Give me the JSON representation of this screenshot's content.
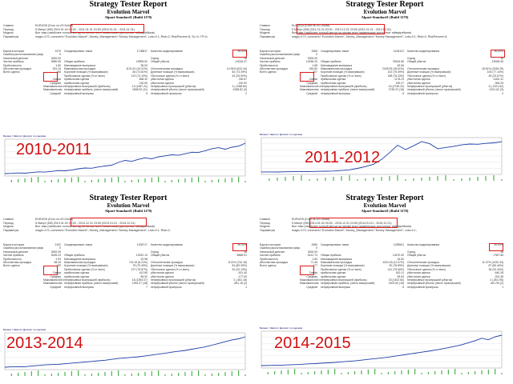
{
  "colors": {
    "accent_red": "#e01b1b",
    "balance_line": "#1f3fa8",
    "volume": "#2ca02c",
    "year_label": "#d11111"
  },
  "reports": [
    {
      "title": "Strategy Tester Report",
      "expert": "Evolution Marvel",
      "server": "Alpari-Standard1 (Build 1170)",
      "year_label": "2010-2011",
      "header": [
        {
          "k": "Символ",
          "v": "EURUSD (Euro vs US Dollar)"
        },
        {
          "k": "Период",
          "v": "5 Минут (M5) 2010.01.04 00:00 - 2011.01.31 23:59 (2010.01.01 - 2011.01.31)"
        },
        {
          "k": "Модель",
          "v": "Все тики (наиболее точный метод на основе всех наименьших доступных таймфреймов)"
        },
        {
          "k": "Параметры",
          "v": "magic=170; comment=\"Evolution Marvel\"; Money_Management=\"Money Management\"; Lots=0.1; Risk=2; RiskPercent=5; SL=0; TP=0;"
        }
      ],
      "quality": "90.00%",
      "stats": [
        [
          "Баров в истории",
          "2470",
          "Смоделировано тиков",
          "1736817",
          "Качество моделирования",
          "90.00%"
        ],
        [
          "Ошибки рассогласования графиков",
          "0",
          "",
          "",
          "",
          ""
        ],
        [
          "Начальный депозит",
          "3000.00",
          "",
          "",
          "Спред",
          "16"
        ],
        [
          "Чистая прибыль",
          "5980.05",
          "Общая прибыль",
          "15995.52",
          "Общий убыток",
          "-10015.47"
        ],
        [
          "Прибыльность",
          "1.60",
          "Матожидание выигрыша",
          "36.00",
          "",
          ""
        ],
        [
          "Абсолютная просадка",
          "261.24",
          "Максимальная просадка",
          "1131.61 (10.01%)",
          "Относительная просадка",
          "14.94% (812.44)"
        ],
        [
          "Всего сделок",
          "166",
          "Короткие позиции (% выигравших)",
          "84 (73.81%)",
          "Длинные позиции (% выигравших)",
          "82 (74.39%)"
        ],
        [
          "",
          "",
          "Прибыльные сделки (% от всех)",
          "123 (74.10%)",
          "Убыточные сделки (% от всех)",
          "43 (25.90%)"
        ],
        [
          "",
          "Самая",
          "прибыльная сделка",
          "668.32",
          "убыточная сделка",
          "-765.67"
        ],
        [
          "",
          "Средняя",
          "прибыльная сделка",
          "130.05",
          "убыточная сделка",
          "-232.92"
        ],
        [
          "",
          "Максимальное количество",
          "непрерывных выигрышей (прибыль)",
          "13 (1487.21)",
          "непрерывных проигрышей (убыток)",
          "3 (-1058.82)"
        ],
        [
          "",
          "Максимальная",
          "непрерывная прибыль (число выигрышей)",
          "1808.92 (11)",
          "непрерывный убыток (число проигрышей)",
          "-1058.82 (3)"
        ],
        [
          "",
          "Средний",
          "непрерывный выигрыш",
          "5",
          "непрерывный проигрыш",
          "2"
        ]
      ],
      "chart_legend": "Баланс / Эквити / Депозит по сделкам"
    },
    {
      "title": "Strategy Tester Report",
      "expert": "Evolution Marvel",
      "server": "Alpari-Standard1 (Build 1170)",
      "year_label": "2011-2012",
      "header": [
        {
          "k": "Символ",
          "v": "EURUSD (Euro vs US Dollar)"
        },
        {
          "k": "Период",
          "v": "5 Минут (M5) 2011.01.01 00:00 - 2012.12.31 23:59 (2011.01.01 - 2012.12.31)"
        },
        {
          "k": "Модель",
          "v": "Все тики (наиболее точный метод на основе всех наименьших доступных таймфреймов)"
        },
        {
          "k": "Параметры",
          "v": "magic=170; comment=\"Evolution Marvel\"; Money_Management=\"Money Management\"; Lots=0.1; Risk=2; RiskPercent=5;"
        }
      ],
      "quality": "90.00%",
      "stats": [
        [
          "Баров в истории",
          "1965",
          "Смоделировано тиков",
          "1434122",
          "Качество моделирования",
          "90.00%"
        ],
        [
          "Ошибки рассогласования графиков",
          "0",
          "",
          "",
          "",
          ""
        ],
        [
          "Начальный депозит",
          "3000.00",
          "",
          "",
          "Спред",
          "16"
        ],
        [
          "Чистая прибыль",
          "10156.20",
          "Общая прибыль",
          "25164.56",
          "Общий убыток",
          "-15008.36"
        ],
        [
          "Прибыльность",
          "1.68",
          "Матожидание выигрыша",
          "49.06",
          "",
          ""
        ],
        [
          "Абсолютная просадка",
          "184.84",
          "Максимальная просадка",
          "2435.25 (18.61%)",
          "Относительная просадка",
          "18.61% (2435.25)"
        ],
        [
          "Всего сделок",
          "207",
          "Короткие позиции (% выигравших)",
          "102 (75.49%)",
          "Длинные позиции (% выигравших)",
          "105 (77.14%)"
        ],
        [
          "",
          "",
          "Прибыльные сделки (% от всех)",
          "158 (76.33%)",
          "Убыточные сделки (% от всех)",
          "49 (23.67%)"
        ],
        [
          "",
          "Самая",
          "прибыльная сделка",
          "1178.23",
          "убыточная сделка",
          "-1452.31"
        ],
        [
          "",
          "Средняя",
          "прибыльная сделка",
          "159.27",
          "убыточная сделка",
          "-306.29"
        ],
        [
          "",
          "Максимальное количество",
          "непрерывных выигрышей (прибыль)",
          "16 (2745.22)",
          "непрерывных проигрышей (убыток)",
          "3 (-2101.62)"
        ],
        [
          "",
          "Максимальная",
          "непрерывная прибыль (число выигрышей)",
          "2745.22 (16)",
          "непрерывный убыток (число проигрышей)",
          "-2101.62 (3)"
        ],
        [
          "",
          "Средний",
          "непрерывный выигрыш",
          "6",
          "непрерывный проигрыш",
          "2"
        ]
      ],
      "chart_legend": "Баланс / Эквити / Депозит по сделкам"
    },
    {
      "title": "Strategy Tester Report",
      "expert": "Evolution Marvel",
      "server": "Alpari-Standard1 (Build 1170)",
      "year_label": "2013-2014",
      "header": [
        {
          "k": "Символ",
          "v": "EURUSD (Euro vs US Dollar)"
        },
        {
          "k": "Период",
          "v": "5 Минут (M5) 2013.01.02 00:00 - 2014.12.31 23:59 (2013.01.01 - 2014.12.31)"
        },
        {
          "k": "Модель",
          "v": "Все тики (наиболее точный метод на основе всех наименьших доступных таймфреймов)"
        },
        {
          "k": "Параметры",
          "v": "magic=170; comment=\"Evolution Marvel\"; Money_Management=\"Money Management\"; Lots=0.1; Risk=2;"
        }
      ],
      "quality": "90.00%",
      "stats": [
        [
          "Баров в истории",
          "2102",
          "Смоделировано тиков",
          "1305717",
          "Качество моделирования",
          "90.00%"
        ],
        [
          "Ошибки рассогласования графиков",
          "0",
          "",
          "",
          "",
          ""
        ],
        [
          "Начальный депозит",
          "3000.00",
          "",
          "",
          "Спред",
          "16"
        ],
        [
          "Чистая прибыль",
          "5245.23",
          "Общая прибыль",
          "10912.14",
          "Общий убыток",
          "-5666.91"
        ],
        [
          "Прибыльность",
          "1.93",
          "Матожидание выигрыша",
          "32.98",
          "",
          ""
        ],
        [
          "Абсолютная просадка",
          "58.26",
          "Максимальная просадка",
          "742.15 (8.21%)",
          "Относительная просадка",
          "8.21% (742.15)"
        ],
        [
          "Всего сделок",
          "159",
          "Короткие позиции (% выигравших)",
          "78 (79.49%)",
          "Длинные позиции (% выигравших)",
          "81 (80.25%)"
        ],
        [
          "",
          "",
          "Прибыльные сделки (% от всех)",
          "127 (79.87%)",
          "Убыточные сделки (% от всех)",
          "32 (20.13%)"
        ],
        [
          "",
          "Самая",
          "прибыльная сделка",
          "412.85",
          "убыточная сделка",
          "-521.40"
        ],
        [
          "",
          "Средняя",
          "прибыльная сделка",
          "85.92",
          "убыточная сделка",
          "-177.09"
        ],
        [
          "",
          "Максимальное количество",
          "непрерывных выигрышей (прибыль)",
          "18 (1394.07)",
          "непрерывных проигрышей (убыток)",
          "2 (-651.18)"
        ],
        [
          "",
          "Максимальная",
          "непрерывная прибыль (число выигрышей)",
          "1394.07 (18)",
          "непрерывный убыток (число проигрышей)",
          "-651.18 (2)"
        ],
        [
          "",
          "Средний",
          "непрерывный выигрыш",
          "7",
          "непрерывный проигрыш",
          "1"
        ]
      ],
      "chart_legend": "Баланс / Эквити / Депозит по сделкам"
    },
    {
      "title": "Strategy Tester Report",
      "expert": "Evolution Marvel",
      "server": "Alpari-Standard1 (Build 1170)",
      "year_label": "2014-2015",
      "header": [
        {
          "k": "Символ",
          "v": "EURUSD (Euro vs US Dollar)"
        },
        {
          "k": "Период",
          "v": "5 Минут (M5) 2014.01.02 00:00 - 2015.12.31 23:59 (2014.01.01 - 2015.12.31)"
        },
        {
          "k": "Модель",
          "v": "Все тики (наиболее точный метод на основе всех наименьших доступных таймфреймов)"
        },
        {
          "k": "Параметры",
          "v": "magic=170; comment=\"Evolution Marvel\"; Money_Management=\"Money Management\"; Lots=0.1;"
        }
      ],
      "quality": "90.00%",
      "stats": [
        [
          "Баров в истории",
          "2080",
          "Смоделировано тиков",
          "1289541",
          "Качество моделирования",
          "90.00%"
        ],
        [
          "Ошибки рассогласования графиков",
          "0",
          "",
          "",
          "",
          ""
        ],
        [
          "Начальный депозит",
          "3000.00",
          "",
          "",
          "Спред",
          "16"
        ],
        [
          "Чистая прибыль",
          "6112.74",
          "Общая прибыль",
          "13470.30",
          "Общий убыток",
          "-7357.56"
        ],
        [
          "Прибыльность",
          "1.83",
          "Матожидание выигрыша",
          "34.54",
          "",
          ""
        ],
        [
          "Абсолютная просадка",
          "71.45",
          "Максимальная просадка",
          "1020.33 (11.07%)",
          "Относительная просадка",
          "11.07% (1020.33)"
        ],
        [
          "Всего сделок",
          "177",
          "Короткие позиции (% выигравших)",
          "90 (78.89%)",
          "Длинные позиции (% выигравших)",
          "87 (80.46%)"
        ],
        [
          "",
          "",
          "Прибыльные сделки (% от всех)",
          "141 (79.66%)",
          "Убыточные сделки (% от всех)",
          "36 (20.34%)"
        ],
        [
          "",
          "Самая",
          "прибыльная сделка",
          "502.11",
          "убыточная сделка",
          "-640.28"
        ],
        [
          "",
          "Средняя",
          "прибыльная сделка",
          "95.53",
          "убыточная сделка",
          "-204.38"
        ],
        [
          "",
          "Максимальное количество",
          "непрерывных выигрышей (прибыль)",
          "15 (1402.60)",
          "непрерывных проигрышей (убыток)",
          "2 (-801.95)"
        ],
        [
          "",
          "Максимальная",
          "непрерывная прибыль (число выигрышей)",
          "1402.60 (15)",
          "непрерывный убыток (число проигрышей)",
          "-801.95 (2)"
        ],
        [
          "",
          "Средний",
          "непрерывный выигрыш",
          "6",
          "непрерывный проигрыш",
          "1"
        ]
      ],
      "chart_legend": "Баланс / Эквити / Депозит по сделкам"
    }
  ],
  "chart_data": [
    {
      "type": "line",
      "series": [
        {
          "values": [
            3000,
            3050,
            3120,
            3080,
            3200,
            3350,
            3300,
            3420,
            3600,
            3550,
            3700,
            3950,
            4100,
            4050,
            4300,
            4500,
            4650,
            5200,
            5600,
            5400,
            5800,
            6100,
            5900,
            6300,
            6500,
            6700,
            6600,
            6900,
            7200,
            7150,
            7500,
            7900,
            8100,
            7800,
            8200,
            8400,
            8980
          ]
        }
      ]
    },
    {
      "type": "line",
      "series": [
        {
          "values": [
            3000,
            3020,
            2980,
            3050,
            3100,
            3080,
            3150,
            3200,
            3250,
            3300,
            3500,
            3700,
            4200,
            4800,
            5600,
            7200,
            9500,
            12000,
            10500,
            11800,
            13200,
            12500,
            10800,
            11200,
            11600,
            12100,
            12400,
            12300,
            12600,
            12800,
            13156
          ]
        }
      ]
    },
    {
      "type": "line",
      "series": [
        {
          "values": [
            3000,
            3050,
            3100,
            3080,
            3200,
            3300,
            3400,
            3450,
            3500,
            3600,
            3700,
            3800,
            3900,
            4000,
            4100,
            4200,
            4350,
            4500,
            4600,
            4700,
            4800,
            4950,
            5100,
            5250,
            5400,
            5600,
            5750,
            5900,
            6100,
            6300,
            6500,
            6800,
            7100,
            7400,
            7700,
            7900,
            8245
          ]
        }
      ]
    },
    {
      "type": "line",
      "series": [
        {
          "values": [
            3000,
            3030,
            3060,
            3100,
            3150,
            3200,
            3260,
            3350,
            3400,
            3480,
            3560,
            3650,
            3750,
            3850,
            3950,
            4100,
            4250,
            4400,
            4550,
            4700,
            4900,
            5100,
            5300,
            5500,
            5700,
            5900,
            6100,
            6350,
            6600,
            6900,
            7200,
            7600,
            8000,
            8500,
            8200,
            8800,
            9112
          ]
        }
      ]
    }
  ]
}
